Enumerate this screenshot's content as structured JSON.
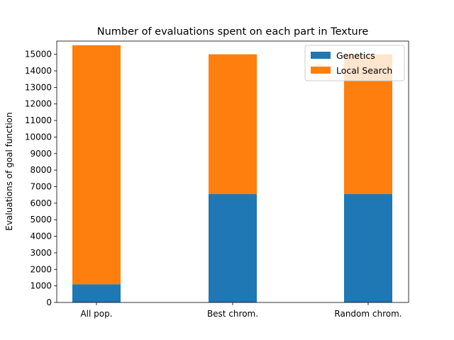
{
  "chart_data": {
    "type": "bar",
    "stacked": true,
    "title": "Number of evaluations spent on each part in Texture",
    "xlabel": "",
    "ylabel": "Evaluations of goal function",
    "categories": [
      "All pop.",
      "Best chrom.",
      "Random chrom."
    ],
    "series": [
      {
        "name": "Genetics",
        "color": "#1f77b4",
        "values": [
          1100,
          6550,
          6550
        ]
      },
      {
        "name": "Local Search",
        "color": "#ff7f0e",
        "values": [
          14450,
          8450,
          8450
        ]
      }
    ],
    "ylim": [
      0,
      15800
    ],
    "yticks": [
      0,
      1000,
      2000,
      3000,
      4000,
      5000,
      6000,
      7000,
      8000,
      9000,
      10000,
      11000,
      12000,
      13000,
      14000,
      15000
    ],
    "legend_position": "top-right",
    "grid": false
  }
}
